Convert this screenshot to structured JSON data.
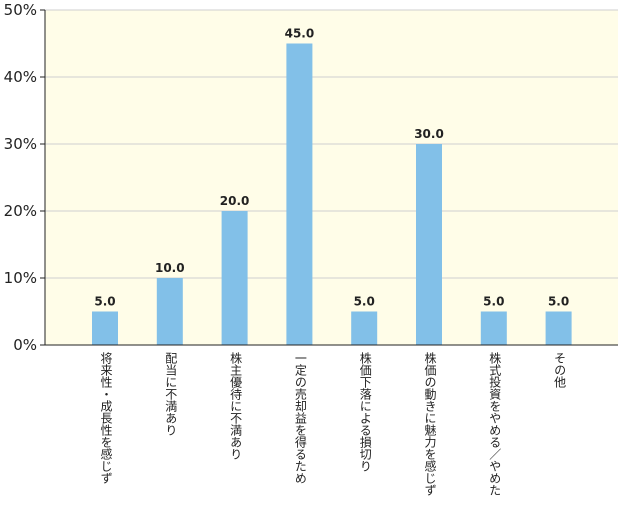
{
  "chart_data": {
    "type": "bar",
    "categories": [
      "将来性・成長性を感じず",
      "配当に不満あり",
      "株主優待に不満あり",
      "一定の売却益を得るため",
      "株価下落による損切り",
      "株価の動きに魅力を感じず",
      "株式投資をやめる／やめた",
      "その他"
    ],
    "values": [
      5.0,
      10.0,
      20.0,
      45.0,
      5.0,
      30.0,
      5.0,
      5.0
    ],
    "value_labels": [
      "5.0",
      "10.0",
      "20.0",
      "45.0",
      "5.0",
      "30.0",
      "5.0",
      "5.0"
    ],
    "y_ticks": [
      {
        "value": 0,
        "label": "0%"
      },
      {
        "value": 10,
        "label": "10%"
      },
      {
        "value": 20,
        "label": "20%"
      },
      {
        "value": 30,
        "label": "30%"
      },
      {
        "value": 40,
        "label": "40%"
      },
      {
        "value": 50,
        "label": "50%"
      }
    ],
    "ylim": [
      0,
      50
    ],
    "grid": true,
    "colors": {
      "bar": "#82c0e8",
      "plot_bg": "#fffde8",
      "grid": "#cfcfcf",
      "axis": "#222222"
    }
  }
}
